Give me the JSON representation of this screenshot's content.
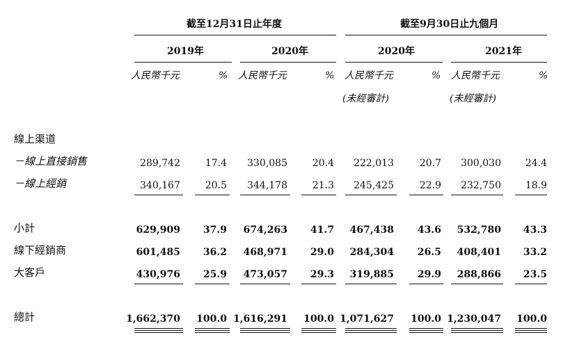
{
  "header": {
    "period_full_year": "截至12月31日止年度",
    "period_nine_months": "截至9月30日止九個月",
    "years": [
      "2019年",
      "2020年",
      "2020年",
      "2021年"
    ],
    "unit_label": "人民幣千元",
    "pct_label": "%",
    "unaudited": "(未經審計)"
  },
  "rows": {
    "online_channel": {
      "label": "線上渠道"
    },
    "online_direct": {
      "label": "－線上直接銷售",
      "values": [
        "289,742",
        "17.4",
        "330,085",
        "20.4",
        "222,013",
        "20.7",
        "300,030",
        "24.4"
      ]
    },
    "online_distribution": {
      "label": "－線上經銷",
      "values": [
        "340,167",
        "20.5",
        "344,178",
        "21.3",
        "245,425",
        "22.9",
        "232,750",
        "18.9"
      ]
    },
    "subtotal": {
      "label": "小計",
      "values": [
        "629,909",
        "37.9",
        "674,263",
        "41.7",
        "467,438",
        "43.6",
        "532,780",
        "43.3"
      ]
    },
    "offline_distributors": {
      "label": "線下經銷商",
      "values": [
        "601,485",
        "36.2",
        "468,971",
        "29.0",
        "284,304",
        "26.5",
        "408,401",
        "33.2"
      ]
    },
    "key_accounts": {
      "label": "大客戶",
      "values": [
        "430,976",
        "25.9",
        "473,057",
        "29.3",
        "319,885",
        "29.9",
        "288,866",
        "23.5"
      ]
    },
    "total": {
      "label": "總計",
      "values": [
        "1,662,370",
        "100.0",
        "1,616,291",
        "100.0",
        "1,071,627",
        "100.0",
        "1,230,047",
        "100.0"
      ]
    }
  }
}
